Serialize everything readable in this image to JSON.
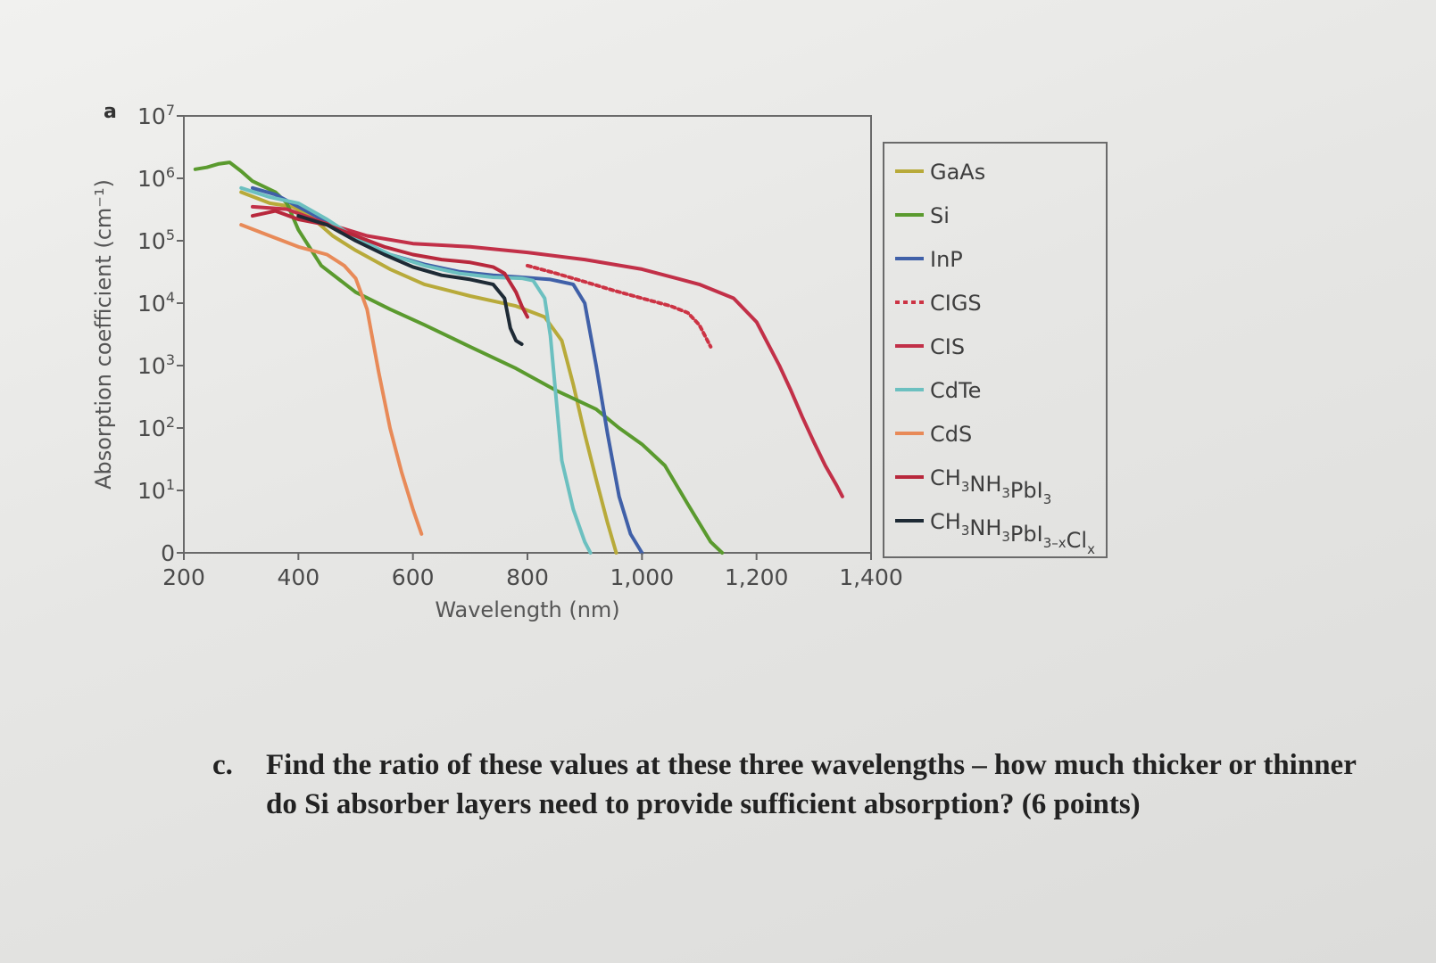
{
  "panel_letter": "a",
  "question": {
    "letter": "c.",
    "text": "Find the ratio of these values at these three wavelengths – how much thicker or thinner do Si absorber layers need to provide sufficient absorption? (6 points)"
  },
  "chart_data": {
    "type": "line",
    "title": "",
    "xlabel": "Wavelength (nm)",
    "ylabel": "Absorption coefficient (cm⁻¹)",
    "xlim": [
      200,
      1400
    ],
    "y_scale": "log",
    "ylim": [
      1,
      10000000
    ],
    "x_ticks": [
      {
        "value": 200,
        "label": "200"
      },
      {
        "value": 400,
        "label": "400"
      },
      {
        "value": 600,
        "label": "600"
      },
      {
        "value": 800,
        "label": "800"
      },
      {
        "value": 1000,
        "label": "1,000"
      },
      {
        "value": 1200,
        "label": "1,200"
      },
      {
        "value": 1400,
        "label": "1,400"
      }
    ],
    "y_ticks": [
      {
        "value": 1,
        "base": "0",
        "exp": ""
      },
      {
        "value": 10,
        "base": "10",
        "exp": "1"
      },
      {
        "value": 100,
        "base": "10",
        "exp": "2"
      },
      {
        "value": 1000,
        "base": "10",
        "exp": "3"
      },
      {
        "value": 10000,
        "base": "10",
        "exp": "4"
      },
      {
        "value": 100000,
        "base": "10",
        "exp": "5"
      },
      {
        "value": 1000000,
        "base": "10",
        "exp": "6"
      },
      {
        "value": 10000000,
        "base": "10",
        "exp": "7"
      }
    ],
    "grid": false,
    "legend_position": "right-outside",
    "series": [
      {
        "name": "GaAs",
        "legend": [
          {
            "t": "GaAs"
          }
        ],
        "color": "#b8aa3a",
        "dash": false,
        "points": [
          [
            300,
            600000
          ],
          [
            350,
            400000
          ],
          [
            390,
            350000
          ],
          [
            420,
            250000
          ],
          [
            460,
            120000
          ],
          [
            500,
            70000
          ],
          [
            560,
            35000
          ],
          [
            620,
            20000
          ],
          [
            700,
            13000
          ],
          [
            780,
            9000
          ],
          [
            830,
            6000
          ],
          [
            860,
            2500
          ],
          [
            880,
            500
          ],
          [
            900,
            80
          ],
          [
            920,
            15
          ],
          [
            940,
            3
          ],
          [
            955,
            1
          ]
        ]
      },
      {
        "name": "Si",
        "legend": [
          {
            "t": "Si"
          }
        ],
        "color": "#5a9a2e",
        "dash": false,
        "points": [
          [
            220,
            1400000
          ],
          [
            240,
            1500000
          ],
          [
            260,
            1700000
          ],
          [
            280,
            1800000
          ],
          [
            300,
            1300000
          ],
          [
            320,
            900000
          ],
          [
            360,
            600000
          ],
          [
            380,
            400000
          ],
          [
            400,
            150000
          ],
          [
            440,
            40000
          ],
          [
            500,
            15000
          ],
          [
            560,
            8000
          ],
          [
            620,
            4500
          ],
          [
            700,
            2000
          ],
          [
            780,
            900
          ],
          [
            850,
            400
          ],
          [
            920,
            200
          ],
          [
            960,
            100
          ],
          [
            1000,
            55
          ],
          [
            1040,
            25
          ],
          [
            1080,
            6
          ],
          [
            1120,
            1.5
          ],
          [
            1140,
            1
          ]
        ]
      },
      {
        "name": "InP",
        "legend": [
          {
            "t": "InP"
          }
        ],
        "color": "#4060a8",
        "dash": false,
        "points": [
          [
            320,
            700000
          ],
          [
            360,
            550000
          ],
          [
            400,
            350000
          ],
          [
            450,
            200000
          ],
          [
            500,
            110000
          ],
          [
            560,
            60000
          ],
          [
            620,
            42000
          ],
          [
            680,
            32000
          ],
          [
            740,
            28000
          ],
          [
            790,
            26000
          ],
          [
            840,
            24000
          ],
          [
            880,
            20000
          ],
          [
            900,
            10000
          ],
          [
            920,
            1000
          ],
          [
            940,
            80
          ],
          [
            960,
            8
          ],
          [
            980,
            2
          ],
          [
            1000,
            1
          ]
        ]
      },
      {
        "name": "CIGS",
        "legend": [
          {
            "t": "CIGS"
          }
        ],
        "color": "#cc3344",
        "dash": true,
        "points": [
          [
            800,
            40000
          ],
          [
            850,
            30000
          ],
          [
            900,
            22000
          ],
          [
            950,
            16000
          ],
          [
            1000,
            12000
          ],
          [
            1050,
            9000
          ],
          [
            1080,
            7000
          ],
          [
            1100,
            4500
          ],
          [
            1110,
            3000
          ],
          [
            1120,
            2000
          ]
        ]
      },
      {
        "name": "CIS",
        "legend": [
          {
            "t": "CIS"
          }
        ],
        "color": "#c23048",
        "dash": false,
        "points": [
          [
            320,
            350000
          ],
          [
            380,
            320000
          ],
          [
            440,
            200000
          ],
          [
            520,
            120000
          ],
          [
            600,
            90000
          ],
          [
            700,
            80000
          ],
          [
            800,
            65000
          ],
          [
            900,
            50000
          ],
          [
            1000,
            35000
          ],
          [
            1100,
            20000
          ],
          [
            1160,
            12000
          ],
          [
            1200,
            5000
          ],
          [
            1240,
            1000
          ],
          [
            1260,
            400
          ],
          [
            1280,
            150
          ],
          [
            1300,
            60
          ],
          [
            1320,
            25
          ],
          [
            1340,
            12
          ],
          [
            1350,
            8
          ]
        ]
      },
      {
        "name": "CdTe",
        "legend": [
          {
            "t": "CdTe"
          }
        ],
        "color": "#6cc0c0",
        "dash": false,
        "points": [
          [
            300,
            700000
          ],
          [
            350,
            500000
          ],
          [
            400,
            400000
          ],
          [
            450,
            220000
          ],
          [
            500,
            110000
          ],
          [
            560,
            60000
          ],
          [
            620,
            40000
          ],
          [
            680,
            30000
          ],
          [
            740,
            26000
          ],
          [
            790,
            25000
          ],
          [
            810,
            23000
          ],
          [
            830,
            12000
          ],
          [
            840,
            3000
          ],
          [
            850,
            300
          ],
          [
            860,
            30
          ],
          [
            880,
            5
          ],
          [
            900,
            1.5
          ],
          [
            910,
            1
          ]
        ]
      },
      {
        "name": "CdS",
        "legend": [
          {
            "t": "CdS"
          }
        ],
        "color": "#e88a58",
        "dash": false,
        "points": [
          [
            300,
            180000
          ],
          [
            350,
            120000
          ],
          [
            400,
            80000
          ],
          [
            450,
            60000
          ],
          [
            480,
            40000
          ],
          [
            500,
            25000
          ],
          [
            520,
            8000
          ],
          [
            540,
            800
          ],
          [
            560,
            100
          ],
          [
            580,
            20
          ],
          [
            600,
            5
          ],
          [
            615,
            2
          ]
        ]
      },
      {
        "name": "CH3NH3PbI3",
        "legend": [
          {
            "t": "CH"
          },
          {
            "t": "3",
            "s": "sub"
          },
          {
            "t": "NH"
          },
          {
            "t": "3",
            "s": "sub"
          },
          {
            "t": "PbI"
          },
          {
            "t": "3",
            "s": "sub"
          }
        ],
        "color": "#b8283c",
        "dash": false,
        "points": [
          [
            320,
            250000
          ],
          [
            360,
            300000
          ],
          [
            400,
            220000
          ],
          [
            450,
            180000
          ],
          [
            500,
            120000
          ],
          [
            550,
            80000
          ],
          [
            600,
            60000
          ],
          [
            650,
            50000
          ],
          [
            700,
            45000
          ],
          [
            740,
            38000
          ],
          [
            760,
            30000
          ],
          [
            780,
            15000
          ],
          [
            790,
            9000
          ],
          [
            800,
            6000
          ]
        ]
      },
      {
        "name": "CH3NH3PbI3-xClx",
        "legend": [
          {
            "t": "CH"
          },
          {
            "t": "3",
            "s": "sub"
          },
          {
            "t": "NH"
          },
          {
            "t": "3",
            "s": "sub"
          },
          {
            "t": "PbI"
          },
          {
            "t": "3–x",
            "s": "sub"
          },
          {
            "t": "Cl"
          },
          {
            "t": "x",
            "s": "sub"
          }
        ],
        "color": "#1e2a35",
        "dash": false,
        "points": [
          [
            400,
            250000
          ],
          [
            450,
            180000
          ],
          [
            500,
            100000
          ],
          [
            550,
            60000
          ],
          [
            600,
            38000
          ],
          [
            650,
            28000
          ],
          [
            700,
            24000
          ],
          [
            740,
            20000
          ],
          [
            760,
            12000
          ],
          [
            770,
            4000
          ],
          [
            780,
            2500
          ],
          [
            790,
            2200
          ]
        ]
      }
    ]
  }
}
